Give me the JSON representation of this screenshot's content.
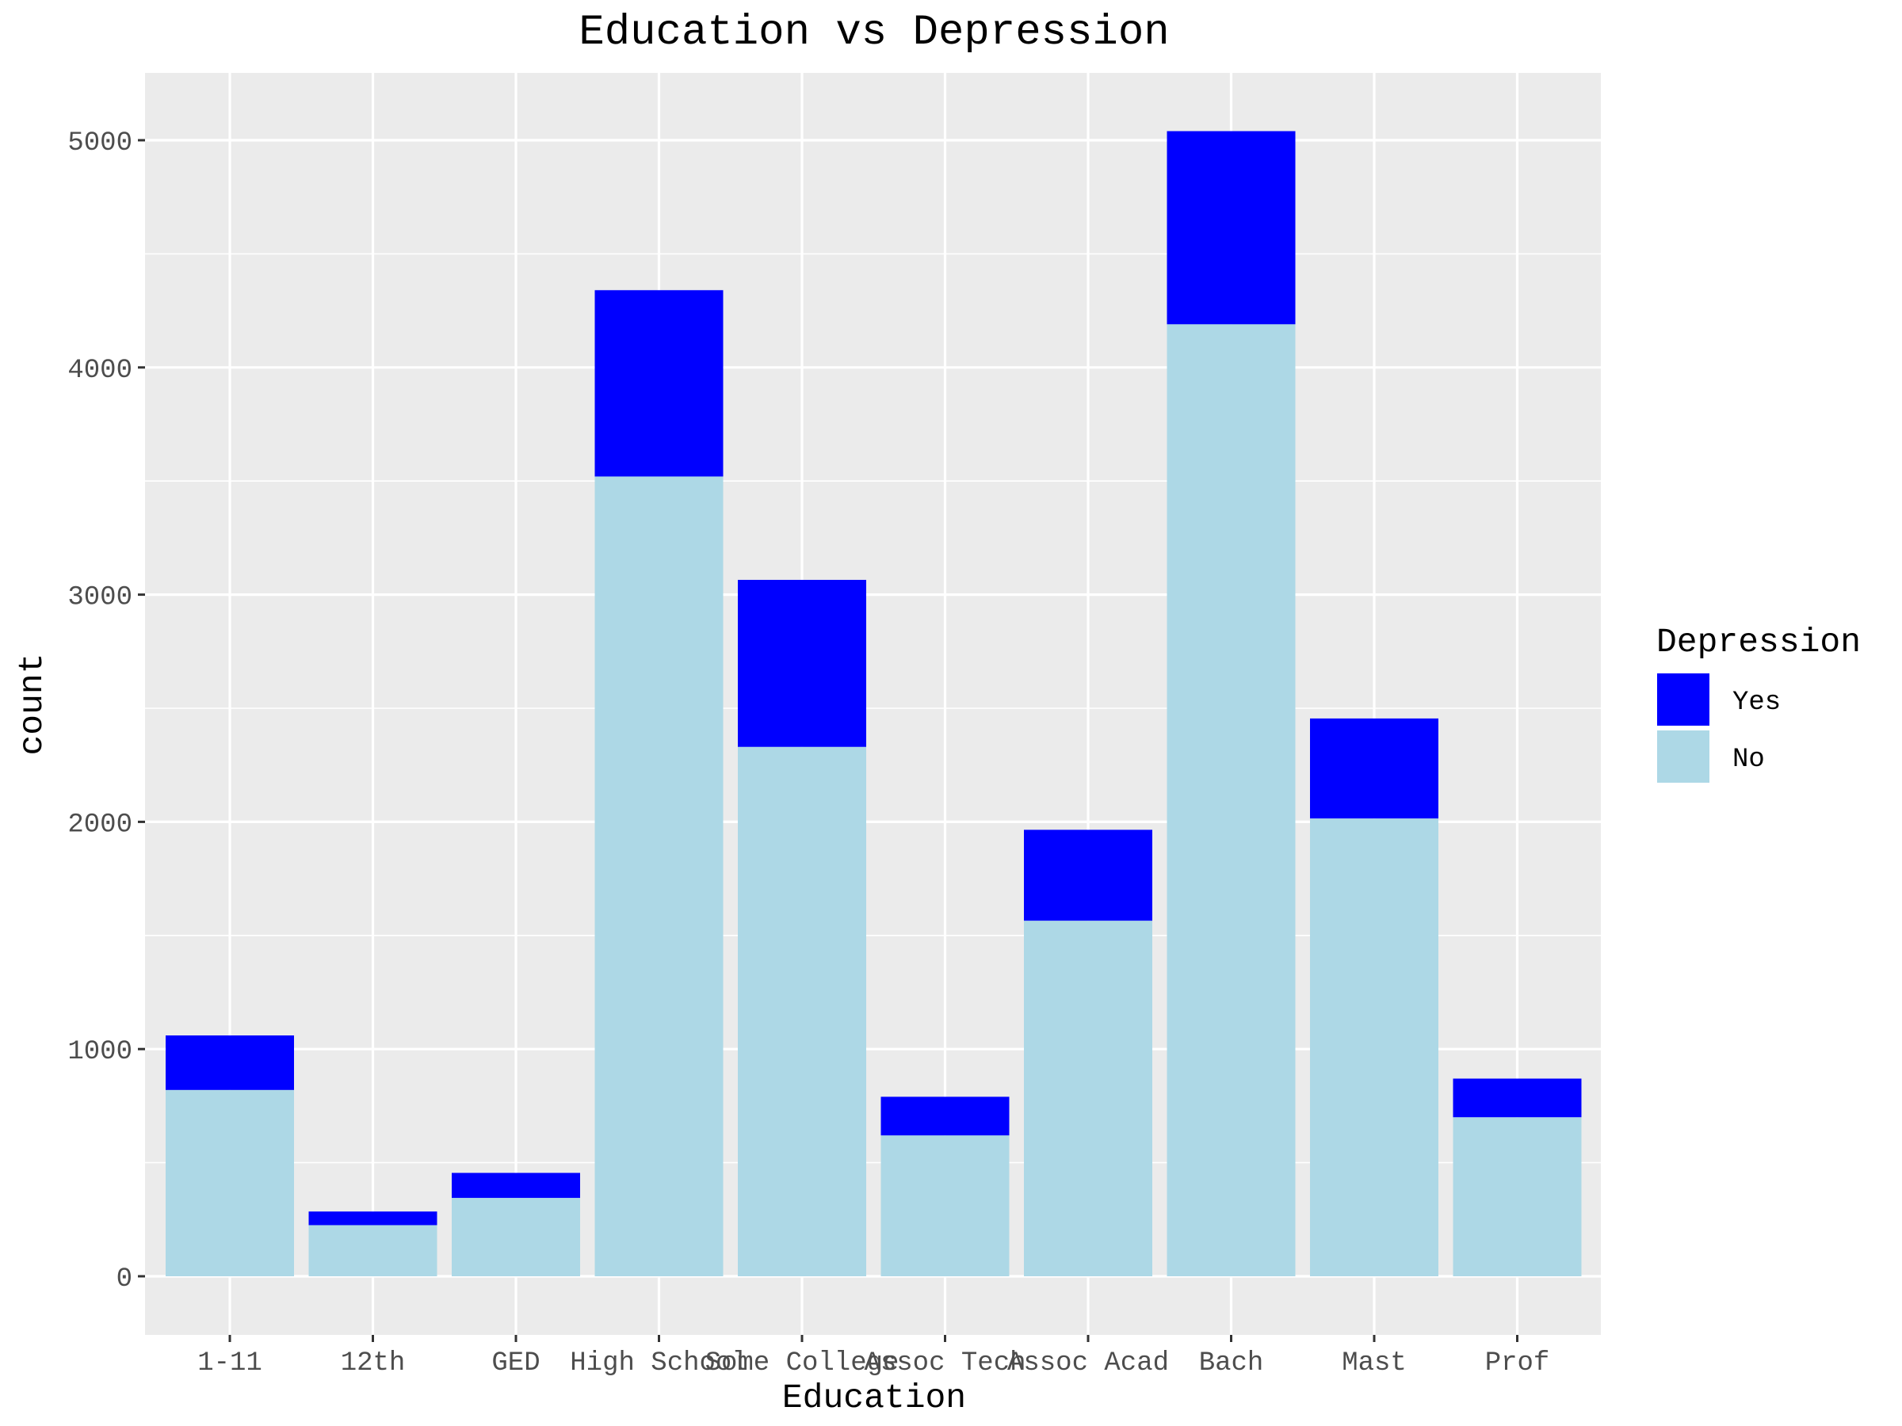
{
  "chart_data": {
    "type": "bar",
    "stacked": true,
    "title": "Education vs Depression",
    "xlabel": "Education",
    "ylabel": "count",
    "categories": [
      "1-11",
      "12th",
      "GED",
      "High School",
      "Some College",
      "Assoc Tech",
      "Assoc Acad",
      "Bach",
      "Mast",
      "Prof"
    ],
    "series": [
      {
        "name": "No",
        "color": "#add8e6",
        "values": [
          820,
          225,
          345,
          3520,
          2330,
          620,
          1565,
          4190,
          2015,
          700
        ]
      },
      {
        "name": "Yes",
        "color": "#0000ff",
        "values": [
          240,
          60,
          110,
          820,
          735,
          170,
          400,
          850,
          440,
          170
        ]
      }
    ],
    "ylim": [
      0,
      5300
    ],
    "yticks": [
      "0",
      "1000",
      "2000",
      "3000",
      "4000",
      "5000"
    ],
    "grid": true,
    "legend": {
      "title": "Depression",
      "position": "right",
      "items": [
        {
          "label": "Yes",
          "color": "#0000ff"
        },
        {
          "label": "No",
          "color": "#add8e6"
        }
      ]
    },
    "colors": {
      "panel": "#ebebeb",
      "grid": "#ffffff"
    }
  }
}
